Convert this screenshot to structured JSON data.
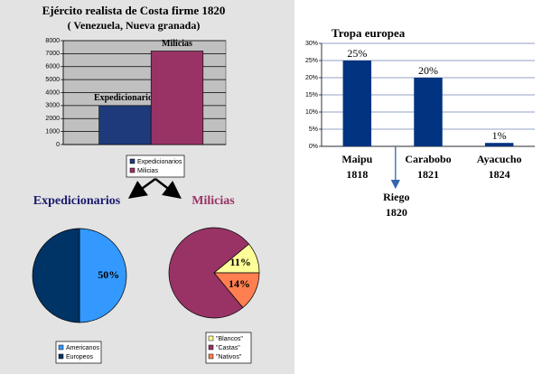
{
  "chart_data": [
    {
      "type": "bar",
      "title": "Ejército realista de Costa firme 1820",
      "subtitle": "( Venezuela, Nueva granada)",
      "series": [
        {
          "name": "Expedicionarios",
          "color": "#1f3a7a",
          "values": [
            3000
          ]
        },
        {
          "name": "Milicias",
          "color": "#993366",
          "values": [
            7200
          ]
        }
      ],
      "ylim": [
        0,
        8000
      ],
      "yticks": [
        0,
        1000,
        2000,
        3000,
        4000,
        5000,
        6000,
        7000,
        8000
      ],
      "grid": true,
      "plot_background": "#c0c0c0",
      "legend": "bottom"
    },
    {
      "type": "pie",
      "title": "Expedicionarios",
      "title_color": "#1a1a70",
      "categories": [
        "Americanos",
        "Europeos"
      ],
      "values": [
        50,
        50
      ],
      "value_labels": [
        "50%",
        null
      ],
      "colors": [
        "#3399ff",
        "#003366"
      ],
      "legend": "bottom"
    },
    {
      "type": "pie",
      "title": "Milicias",
      "title_color": "#993366",
      "categories": [
        "\"Blancos\"",
        "\"Castas\"",
        "\"Nativos\""
      ],
      "values": [
        11,
        75,
        14
      ],
      "value_labels": [
        "11%",
        null,
        "14%"
      ],
      "colors": [
        "#ffff99",
        "#993366",
        "#ff7f50"
      ],
      "legend": "bottom"
    },
    {
      "type": "bar",
      "title": "Tropa europea",
      "categories": [
        [
          "Maipu",
          "1818"
        ],
        [
          "Carabobo",
          "1821"
        ],
        [
          "Ayacucho",
          "1824"
        ]
      ],
      "values": [
        25,
        20,
        1
      ],
      "value_labels": [
        "25%",
        "20%",
        "1%"
      ],
      "color": "#003380",
      "ylim": [
        0,
        30
      ],
      "yticks": [
        {
          "value": 0,
          "label": "0%"
        },
        {
          "value": 5,
          "label": "5%"
        },
        {
          "value": 10,
          "label": "10%"
        },
        {
          "value": 15,
          "label": "15%"
        },
        {
          "value": 20,
          "label": "20%"
        },
        {
          "value": 25,
          "label": "25%"
        },
        {
          "value": 30,
          "label": "30%"
        }
      ],
      "grid": true,
      "annotation": [
        "Riego",
        "1820"
      ]
    }
  ]
}
